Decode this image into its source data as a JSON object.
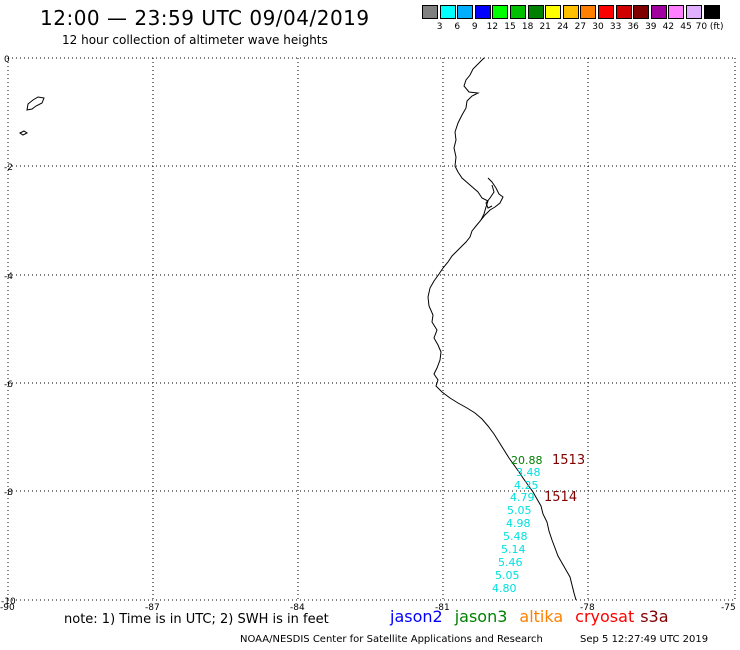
{
  "header": {
    "title": "12:00 — 23:59 UTC 09/04/2019",
    "subtitle": "12 hour collection of altimeter wave heights"
  },
  "colorbar": {
    "labels": [
      "3",
      "6",
      "9",
      "12",
      "15",
      "18",
      "21",
      "24",
      "27",
      "30",
      "33",
      "36",
      "39",
      "42",
      "45",
      "70 (ft)"
    ],
    "colors": [
      "#808080",
      "#00ffff",
      "#00b0ff",
      "#0000ff",
      "#00ff00",
      "#00c000",
      "#008000",
      "#ffff00",
      "#ffc000",
      "#ff8000",
      "#ff0000",
      "#d00000",
      "#800000",
      "#a000a0",
      "#ff80ff",
      "#e0b0ff",
      "#000000"
    ]
  },
  "map": {
    "lat_ticks": [
      "0",
      "-2",
      "-4",
      "-6",
      "-8",
      "-10"
    ],
    "lon_ticks": [
      "-90",
      "-87",
      "-84",
      "-81",
      "-78",
      "-75"
    ],
    "coast_color": "#000000",
    "grid_color": "#000000"
  },
  "track_labels": [
    {
      "text": "20.88",
      "color": "#008000"
    },
    {
      "text": "3.48",
      "color": "#00e0e0"
    },
    {
      "text": "4.25",
      "color": "#00e0e0"
    },
    {
      "text": "4.79",
      "color": "#00e0e0"
    },
    {
      "text": "5.05",
      "color": "#00e0e0"
    },
    {
      "text": "4.98",
      "color": "#00e0e0"
    },
    {
      "text": "5.48",
      "color": "#00e0e0"
    },
    {
      "text": "5.14",
      "color": "#00e0e0"
    },
    {
      "text": "5.46",
      "color": "#00e0e0"
    },
    {
      "text": "5.05",
      "color": "#00e0e0"
    },
    {
      "text": "4.80",
      "color": "#00e0e0"
    }
  ],
  "time_labels": [
    {
      "text": "1513",
      "color": "#800000"
    },
    {
      "text": "1514",
      "color": "#800000"
    }
  ],
  "footer": {
    "note": "note: 1) Time is in UTC; 2) SWH is in feet",
    "credit": "NOAA/NESDIS Center for Satellite Applications and Research",
    "timestamp": "Sep  5 12:27:49 UTC 2019"
  },
  "satellites": [
    {
      "name": "jason2",
      "color": "#0000ff"
    },
    {
      "name": "jason3",
      "color": "#008000"
    },
    {
      "name": "altika",
      "color": "#ff8000"
    },
    {
      "name": "cryosat",
      "color": "#ff0000"
    },
    {
      "name": "s3a",
      "color": "#800000"
    }
  ]
}
